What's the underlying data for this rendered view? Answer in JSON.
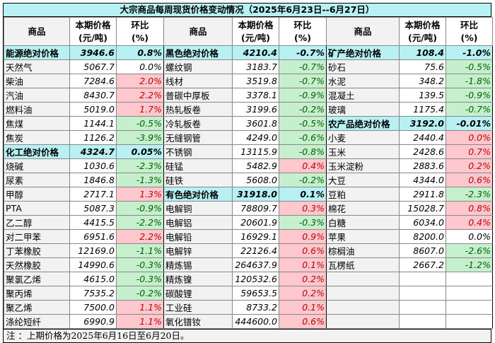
{
  "title": "大宗商品每周现货价格变动情况（2025年6月23日--6月27日）",
  "headers": {
    "name": "商品",
    "price": "本期价格\n(元/吨)",
    "change": "环比\n(%)"
  },
  "colors": {
    "up_bg": "#ffc7ce",
    "up_text": "#c00000",
    "down_bg": "#c6efce",
    "down_text": "#006100",
    "category_bg": "#b7f1f4"
  },
  "groups": [
    [
      {
        "name": "能源绝对价格",
        "price": "3946.6",
        "change": "0.8%",
        "trend": "hdr"
      },
      {
        "name": "天然气",
        "price": "5067.7",
        "change": "0.0%",
        "trend": "flat"
      },
      {
        "name": "柴油",
        "price": "7284.6",
        "change": "2.0%",
        "trend": "up"
      },
      {
        "name": "汽油",
        "price": "8430.7",
        "change": "2.2%",
        "trend": "up"
      },
      {
        "name": "燃料油",
        "price": "5019.0",
        "change": "1.7%",
        "trend": "up"
      },
      {
        "name": "焦煤",
        "price": "1144.1",
        "change": "-0.5%",
        "trend": "down"
      },
      {
        "name": "焦炭",
        "price": "1126.2",
        "change": "-3.9%",
        "trend": "down"
      },
      {
        "name": "化工绝对价格",
        "price": "4324.7",
        "change": "0.05%",
        "trend": "hdr"
      },
      {
        "name": "烧碱",
        "price": "1030.6",
        "change": "-2.3%",
        "trend": "down"
      },
      {
        "name": "尿素",
        "price": "1846.8",
        "change": "-1.3%",
        "trend": "down"
      },
      {
        "name": "甲醇",
        "price": "2717.1",
        "change": "1.3%",
        "trend": "up"
      },
      {
        "name": "PTA",
        "price": "5087.3",
        "change": "-0.9%",
        "trend": "down"
      },
      {
        "name": "乙二醇",
        "price": "4415.5",
        "change": "-2.2%",
        "trend": "down"
      },
      {
        "name": "对二甲苯",
        "price": "6951.6",
        "change": "2.2%",
        "trend": "up"
      },
      {
        "name": "丁苯橡胶",
        "price": "12169.0",
        "change": "-1.1%",
        "trend": "down"
      },
      {
        "name": "天然橡胶",
        "price": "14990.6",
        "change": "-0.3%",
        "trend": "down"
      },
      {
        "name": "聚氯乙烯",
        "price": "4615.0",
        "change": "-0.3%",
        "trend": "down"
      },
      {
        "name": "聚丙烯",
        "price": "7535.2",
        "change": "-0.2%",
        "trend": "down"
      },
      {
        "name": "聚乙烯",
        "price": "7500.0",
        "change": "1.1%",
        "trend": "up"
      },
      {
        "name": "涤纶短纤",
        "price": "6990.9",
        "change": "1.1%",
        "trend": "up"
      }
    ],
    [
      {
        "name": "黑色绝对价格",
        "price": "4210.4",
        "change": "-0.7%",
        "trend": "hdr"
      },
      {
        "name": "螺纹钢",
        "price": "3183.7",
        "change": "-0.7%",
        "trend": "down"
      },
      {
        "name": "线材",
        "price": "3519.8",
        "change": "-0.7%",
        "trend": "down"
      },
      {
        "name": "普碳中厚板",
        "price": "3378.1",
        "change": "-0.9%",
        "trend": "down"
      },
      {
        "name": "热轧板卷",
        "price": "3199.6",
        "change": "-0.2%",
        "trend": "down"
      },
      {
        "name": "冷轧板卷",
        "price": "3601.8",
        "change": "-0.5%",
        "trend": "down"
      },
      {
        "name": "无缝钢管",
        "price": "4249.0",
        "change": "-0.6%",
        "trend": "down"
      },
      {
        "name": "不锈钢",
        "price": "13115.9",
        "change": "-0.8%",
        "trend": "down"
      },
      {
        "name": "硅锰",
        "price": "5482.9",
        "change": "0.4%",
        "trend": "up"
      },
      {
        "name": "硅铁",
        "price": "5608.0",
        "change": "-0.2%",
        "trend": "down"
      },
      {
        "name": "有色绝对价格",
        "price": "31918.0",
        "change": "0.1%",
        "trend": "hdr"
      },
      {
        "name": "电解铜",
        "price": "78809.7",
        "change": "0.3%",
        "trend": "up"
      },
      {
        "name": "电解铝",
        "price": "20601.9",
        "change": "-0.3%",
        "trend": "down"
      },
      {
        "name": "电解铅",
        "price": "16929.1",
        "change": "0.9%",
        "trend": "up"
      },
      {
        "name": "电解锌",
        "price": "22126.4",
        "change": "0.6%",
        "trend": "up"
      },
      {
        "name": "精炼锡",
        "price": "264637.9",
        "change": "0.1%",
        "trend": "up"
      },
      {
        "name": "精炼镍",
        "price": "120532.6",
        "change": "0.2%",
        "trend": "up"
      },
      {
        "name": "碳酸锂",
        "price": "59653.5",
        "change": "0.2%",
        "trend": "up"
      },
      {
        "name": "工业硅",
        "price": "8733.2",
        "change": "0.1%",
        "trend": "up"
      },
      {
        "name": "氧化镨钕",
        "price": "444600.0",
        "change": "0.6%",
        "trend": "up"
      }
    ],
    [
      {
        "name": "矿产绝对价格",
        "price": "108.4",
        "change": "-1.0%",
        "trend": "hdr"
      },
      {
        "name": "砂石",
        "price": "75.6",
        "change": "-0.5%",
        "trend": "down"
      },
      {
        "name": "水泥",
        "price": "348.2",
        "change": "-1.8%",
        "trend": "down"
      },
      {
        "name": "混凝土",
        "price": "139.5",
        "change": "-0.9%",
        "trend": "down"
      },
      {
        "name": "玻璃",
        "price": "1175.4",
        "change": "-0.7%",
        "trend": "down"
      },
      {
        "name": "农产品绝对价格",
        "price": "3192.0",
        "change": "-0.01%",
        "trend": "hdr"
      },
      {
        "name": "小麦",
        "price": "2440.4",
        "change": "0.0%",
        "trend": "up"
      },
      {
        "name": "玉米",
        "price": "2428.6",
        "change": "0.7%",
        "trend": "up"
      },
      {
        "name": "玉米淀粉",
        "price": "2883.6",
        "change": "0.2%",
        "trend": "up"
      },
      {
        "name": "大豆",
        "price": "4344.0",
        "change": "0.6%",
        "trend": "up"
      },
      {
        "name": "豆粕",
        "price": "2911.8",
        "change": "-2.3%",
        "trend": "down"
      },
      {
        "name": "棉花",
        "price": "15028.7",
        "change": "0.8%",
        "trend": "up"
      },
      {
        "name": "白糖",
        "price": "6034.0",
        "change": "0.4%",
        "trend": "up"
      },
      {
        "name": "苹果",
        "price": "8200.0",
        "change": "0.0%",
        "trend": "flat"
      },
      {
        "name": "棕榈油",
        "price": "8607.0",
        "change": "-2.6%",
        "trend": "down"
      },
      {
        "name": "瓦楞纸",
        "price": "2667.2",
        "change": "-1.2%",
        "trend": "down"
      },
      {
        "name": "",
        "price": "",
        "change": "",
        "trend": "flat"
      },
      {
        "name": "",
        "price": "",
        "change": "",
        "trend": "flat"
      },
      {
        "name": "",
        "price": "",
        "change": "",
        "trend": "flat"
      },
      {
        "name": "",
        "price": "",
        "change": "",
        "trend": "flat"
      }
    ]
  ],
  "note": "注 ：上期价格为2025年6月16日至6月20日。"
}
